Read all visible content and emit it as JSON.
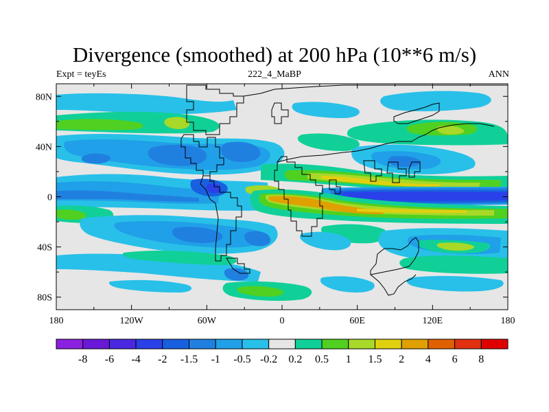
{
  "title": "Divergence (smoothed) at 200 hPa (10**6 m/s)",
  "left_label": "Expt = teyEs",
  "center_label": "222_4_MaBP",
  "right_label": "ANN",
  "axes": {
    "lon_ticks": [
      "180",
      "120W",
      "60W",
      "0",
      "60E",
      "120E",
      "180"
    ],
    "lat_ticks": [
      "80N",
      "40N",
      "0",
      "40S",
      "80S"
    ]
  },
  "colorbar": {
    "labels": [
      "-8",
      "-6",
      "-4",
      "-2",
      "-1.5",
      "-1",
      "-0.5",
      "-0.2",
      "0.2",
      "0.5",
      "1",
      "1.5",
      "2",
      "4",
      "6",
      "8"
    ],
    "colors": [
      "#8c20e0",
      "#6a18d8",
      "#4a28e0",
      "#2a40e8",
      "#1860e0",
      "#2080e0",
      "#20a0e8",
      "#28c0e8",
      "#e6e6e6",
      "#10d098",
      "#50d020",
      "#a8d828",
      "#e0d010",
      "#e0a000",
      "#e06000",
      "#e03010",
      "#e00000"
    ]
  },
  "palette": {
    "neutral": "#e6e6e6",
    "coast": "#000000"
  }
}
